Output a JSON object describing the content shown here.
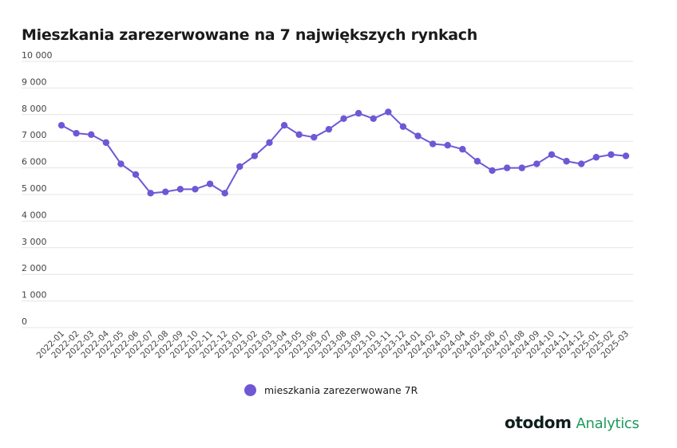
{
  "title": "Mieszkania zarezerwowane na 7 największych rynkach",
  "brand": {
    "name": "otodom",
    "sub": "Analytics"
  },
  "colors": {
    "series": "#6f57d6",
    "grid": "#e4e4e4",
    "brand_green": "#1f9a5c"
  },
  "chart_data": {
    "type": "line",
    "title": "Mieszkania zarezerwowane na 7 największych rynkach",
    "xlabel": "",
    "ylabel": "",
    "ylim": [
      0,
      10000
    ],
    "grid": true,
    "legend_position": "bottom-center",
    "y_ticks": [
      {
        "value": 0,
        "label": "0"
      },
      {
        "value": 1000,
        "label": "1 000"
      },
      {
        "value": 2000,
        "label": "2 000"
      },
      {
        "value": 3000,
        "label": "3 000"
      },
      {
        "value": 4000,
        "label": "4 000"
      },
      {
        "value": 5000,
        "label": "5 000"
      },
      {
        "value": 6000,
        "label": "6 000"
      },
      {
        "value": 7000,
        "label": "7 000"
      },
      {
        "value": 8000,
        "label": "8 000"
      },
      {
        "value": 9000,
        "label": "9 000"
      },
      {
        "value": 10000,
        "label": "10 000"
      }
    ],
    "categories": [
      "2022-01",
      "2022-02",
      "2022-03",
      "2022-04",
      "2022-05",
      "2022-06",
      "2022-07",
      "2022-08",
      "2022-09",
      "2022-10",
      "2022-11",
      "2022-12",
      "2023-01",
      "2023-02",
      "2023-03",
      "2023-04",
      "2023-05",
      "2023-06",
      "2023-07",
      "2023-08",
      "2023-09",
      "2023-10",
      "2023-11",
      "2023-12",
      "2024-01",
      "2024-02",
      "2024-03",
      "2024-04",
      "2024-05",
      "2024-06",
      "2024-07",
      "2024-08",
      "2024-09",
      "2024-10",
      "2024-11",
      "2024-12",
      "2025-01",
      "2025-02",
      "2025-03"
    ],
    "series": [
      {
        "name": "mieszkania zarezerwowane 7R",
        "color": "#6f57d6",
        "values": [
          7600,
          7300,
          7250,
          6950,
          6150,
          5750,
          5050,
          5100,
          5200,
          5200,
          5400,
          5050,
          6050,
          6450,
          6950,
          7600,
          7250,
          7150,
          7450,
          7850,
          8050,
          7850,
          8100,
          7550,
          7200,
          6900,
          6850,
          6700,
          6250,
          5900,
          6000,
          6000,
          6150,
          6500,
          6250,
          6150,
          6400,
          6500,
          6450
        ]
      }
    ]
  }
}
